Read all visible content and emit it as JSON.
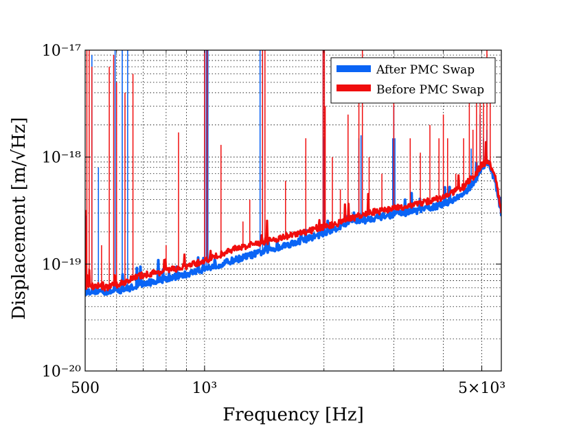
{
  "chart_data": {
    "type": "line",
    "title": "",
    "xlabel": "Frequency [Hz]",
    "ylabel": "Displacement [m/√Hz]",
    "xscale": "log",
    "yscale": "log",
    "xlim": [
      500,
      5600
    ],
    "ylim": [
      1e-20,
      1e-17
    ],
    "grid": true,
    "legend_position": "top-right",
    "x_ticks": [
      {
        "value": 500,
        "label": "500"
      },
      {
        "value": 1000,
        "label": "10³"
      },
      {
        "value": 5000,
        "label": "5×10³"
      }
    ],
    "y_ticks": [
      {
        "value": 1e-20,
        "label": "10⁻²⁰"
      },
      {
        "value": 1e-19,
        "label": "10⁻¹⁹"
      },
      {
        "value": 1e-18,
        "label": "10⁻¹⁸"
      },
      {
        "value": 1e-17,
        "label": "10⁻¹⁷"
      }
    ],
    "series": [
      {
        "name": "After PMC Swap",
        "color": "#0a64f5",
        "baseline": [
          [
            500,
            5.5e-20
          ],
          [
            530,
            5.6e-20
          ],
          [
            560,
            5.5e-20
          ],
          [
            600,
            5.6e-20
          ],
          [
            650,
            6e-20
          ],
          [
            700,
            6.5e-20
          ],
          [
            800,
            7.3e-20
          ],
          [
            900,
            8e-20
          ],
          [
            1000,
            9e-20
          ],
          [
            1100,
            1e-19
          ],
          [
            1200,
            1.1e-19
          ],
          [
            1400,
            1.3e-19
          ],
          [
            1600,
            1.5e-19
          ],
          [
            1800,
            1.7e-19
          ],
          [
            2000,
            1.95e-19
          ],
          [
            2200,
            2.25e-19
          ],
          [
            2400,
            2.6e-19
          ],
          [
            2500,
            2.5e-19
          ],
          [
            2600,
            2.65e-19
          ],
          [
            3000,
            2.9e-19
          ],
          [
            3500,
            3.2e-19
          ],
          [
            4000,
            3.6e-19
          ],
          [
            4500,
            4.5e-19
          ],
          [
            4800,
            6e-19
          ],
          [
            5000,
            8e-19
          ],
          [
            5200,
            9e-19
          ],
          [
            5400,
            6e-19
          ],
          [
            5600,
            3e-19
          ]
        ],
        "peaks": [
          [
            520,
            9e-18
          ],
          [
            540,
            8e-19
          ],
          [
            595,
            8e-17
          ],
          [
            620,
            9e-17
          ],
          [
            640,
            8e-17
          ],
          [
            1000,
            5e-17
          ],
          [
            1010,
            5e-17
          ],
          [
            1020,
            9e-17
          ],
          [
            1380,
            8e-17
          ],
          [
            1400,
            5e-17
          ],
          [
            1990,
            5e-17
          ],
          [
            2000,
            1.5e-18
          ],
          [
            2010,
            3e-18
          ],
          [
            2450,
            1.5e-18
          ],
          [
            2480,
            1.6e-18
          ],
          [
            2980,
            1.5e-18
          ],
          [
            3000,
            3e-18
          ],
          [
            3020,
            1.5e-18
          ],
          [
            4700,
            1.2e-18
          ],
          [
            4950,
            2.5e-18
          ],
          [
            5050,
            1.5e-18
          ],
          [
            5150,
            1.8e-18
          ]
        ]
      },
      {
        "name": "Before PMC Swap",
        "color": "#f00d0d",
        "baseline": [
          [
            500,
            6e-20
          ],
          [
            530,
            6.3e-20
          ],
          [
            560,
            6e-20
          ],
          [
            600,
            6.3e-20
          ],
          [
            650,
            7.2e-20
          ],
          [
            700,
            7.9e-20
          ],
          [
            800,
            8.6e-20
          ],
          [
            900,
            9.5e-20
          ],
          [
            1000,
            1.07e-19
          ],
          [
            1100,
            1.23e-19
          ],
          [
            1200,
            1.4e-19
          ],
          [
            1400,
            1.6e-19
          ],
          [
            1600,
            1.8e-19
          ],
          [
            1800,
            2e-19
          ],
          [
            2000,
            2.2e-19
          ],
          [
            2200,
            2.45e-19
          ],
          [
            2400,
            2.75e-19
          ],
          [
            2500,
            2.85e-19
          ],
          [
            2600,
            3e-19
          ],
          [
            3000,
            3.3e-19
          ],
          [
            3500,
            3.7e-19
          ],
          [
            4000,
            4.2e-19
          ],
          [
            4500,
            5.3e-19
          ],
          [
            4800,
            6.8e-19
          ],
          [
            5000,
            8.4e-19
          ],
          [
            5200,
            9.3e-19
          ],
          [
            5400,
            6.5e-19
          ],
          [
            5600,
            3.2e-19
          ]
        ],
        "peaks": [
          [
            505,
            5e-17
          ],
          [
            512,
            9e-17
          ],
          [
            520,
            7e-18
          ],
          [
            550,
            1.5e-19
          ],
          [
            575,
            7e-18
          ],
          [
            590,
            9e-18
          ],
          [
            600,
            5e-18
          ],
          [
            630,
            4e-18
          ],
          [
            660,
            6e-18
          ],
          [
            800,
            1.5e-19
          ],
          [
            860,
            1.7e-18
          ],
          [
            1000,
            7e-17
          ],
          [
            1015,
            8e-17
          ],
          [
            1100,
            1.3e-18
          ],
          [
            1250,
            2.5e-19
          ],
          [
            1300,
            4e-19
          ],
          [
            1400,
            7e-17
          ],
          [
            1420,
            5e-17
          ],
          [
            1600,
            6e-19
          ],
          [
            1800,
            1.5e-18
          ],
          [
            1990,
            9e-17
          ],
          [
            2005,
            5e-17
          ],
          [
            2015,
            3e-18
          ],
          [
            2100,
            1e-18
          ],
          [
            2200,
            5e-19
          ],
          [
            2300,
            2.5e-18
          ],
          [
            2450,
            5e-18
          ],
          [
            2500,
            7e-17
          ],
          [
            2600,
            1e-18
          ],
          [
            2800,
            7e-19
          ],
          [
            3000,
            4e-18
          ],
          [
            3300,
            1.5e-18
          ],
          [
            3500,
            1.1e-18
          ],
          [
            3700,
            2e-18
          ],
          [
            3900,
            1.5e-18
          ],
          [
            4000,
            2.5e-18
          ],
          [
            4100,
            1.5e-18
          ],
          [
            4300,
            7e-19
          ],
          [
            4500,
            1.5e-18
          ],
          [
            4650,
            7e-18
          ],
          [
            4750,
            1.8e-18
          ],
          [
            4850,
            5e-18
          ],
          [
            4950,
            8e-18
          ],
          [
            5050,
            4e-18
          ],
          [
            5150,
            7e-17
          ],
          [
            5250,
            4e-18
          ]
        ]
      }
    ]
  }
}
